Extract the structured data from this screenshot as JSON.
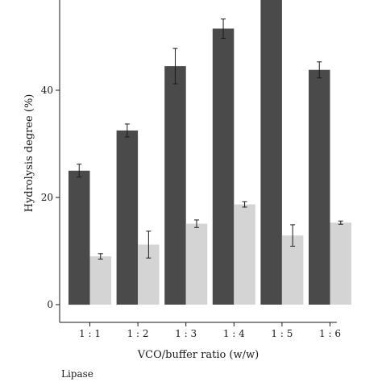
{
  "chart_data": {
    "type": "bar",
    "xlabel": "VCO/buffer ratio (w/w)",
    "ylabel": "Hydrolysis degree (%)",
    "categories": [
      "1 : 1",
      "1 : 2",
      "1 : 3",
      "1 : 4",
      "1 : 5",
      "1 : 6"
    ],
    "yticks": [
      0,
      20,
      40
    ],
    "ylim": [
      0,
      57
    ],
    "series": [
      {
        "color": "#4a4a4a",
        "values": [
          25.0,
          32.5,
          44.5,
          51.5,
          62.0,
          43.8
        ],
        "errors": [
          1.2,
          1.2,
          3.3,
          1.8,
          0,
          1.5
        ]
      },
      {
        "color": "#d4d4d4",
        "values": [
          9.0,
          11.2,
          15.1,
          18.7,
          12.9,
          15.3
        ],
        "errors": [
          0.5,
          2.5,
          0.7,
          0.5,
          2.0,
          0.3
        ]
      }
    ],
    "legend_title": "Lipase",
    "grid": false
  }
}
